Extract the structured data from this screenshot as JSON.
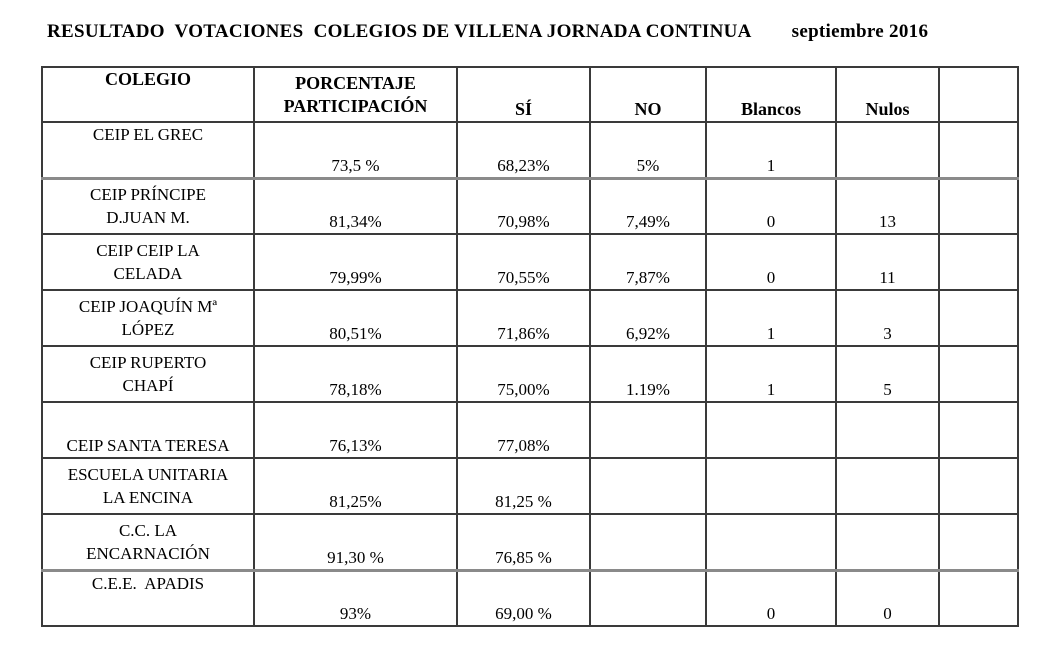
{
  "title": {
    "main": "RESULTADO  VOTACIONES  COLEGIOS DE VILLENA JORNADA CONTINUA",
    "date": "septiembre 2016"
  },
  "table": {
    "headers": [
      "COLEGIO",
      "PORCENTAJE\nPARTICIPACIÓN",
      "SÍ",
      "NO",
      "Blancos",
      "Nulos",
      ""
    ],
    "column_keys": [
      "participacion",
      "si",
      "no",
      "blancos",
      "nulos",
      "extra"
    ],
    "rows": [
      {
        "name_lines": [
          "CEIP EL GREC"
        ],
        "name_valign": "top",
        "values": [
          "73,5 %",
          "68,23%",
          "5%",
          "1",
          "",
          ""
        ]
      },
      {
        "name_lines": [
          "CEIP PRÍNCIPE",
          "D.JUAN M."
        ],
        "name_valign": "middle",
        "values": [
          "81,34%",
          "70,98%",
          "7,49%",
          "0",
          "13",
          ""
        ]
      },
      {
        "name_lines": [
          "CEIP CEIP LA",
          "CELADA"
        ],
        "name_valign": "middle",
        "values": [
          "79,99%",
          "70,55%",
          "7,87%",
          "0",
          "11",
          ""
        ]
      },
      {
        "name_lines": [
          "CEIP JOAQUÍN Mª",
          "LÓPEZ"
        ],
        "name_valign": "middle",
        "values": [
          "80,51%",
          "71,86%",
          "6,92%",
          "1",
          "3",
          ""
        ]
      },
      {
        "name_lines": [
          "CEIP RUPERTO",
          "CHAPÍ"
        ],
        "name_valign": "middle",
        "values": [
          "78,18%",
          "75,00%",
          "1.19%",
          "1",
          "5",
          ""
        ]
      },
      {
        "name_lines": [
          "CEIP SANTA TERESA"
        ],
        "name_valign": "bottom",
        "values": [
          "76,13%",
          "77,08%",
          "",
          "",
          "",
          ""
        ]
      },
      {
        "name_lines": [
          "ESCUELA UNITARIA",
          "LA ENCINA"
        ],
        "name_valign": "middle",
        "values": [
          "81,25%",
          "81,25 %",
          "",
          "",
          "",
          ""
        ]
      },
      {
        "name_lines": [
          "C.C. LA",
          "ENCARNACIÓN"
        ],
        "name_valign": "middle",
        "values": [
          "91,30 %",
          "76,85 %",
          "",
          "",
          "",
          ""
        ]
      },
      {
        "name_lines": [
          "C.E.E.  APADIS"
        ],
        "name_valign": "top",
        "values": [
          "93%",
          "69,00 %",
          "",
          "0",
          "0",
          ""
        ]
      }
    ]
  }
}
